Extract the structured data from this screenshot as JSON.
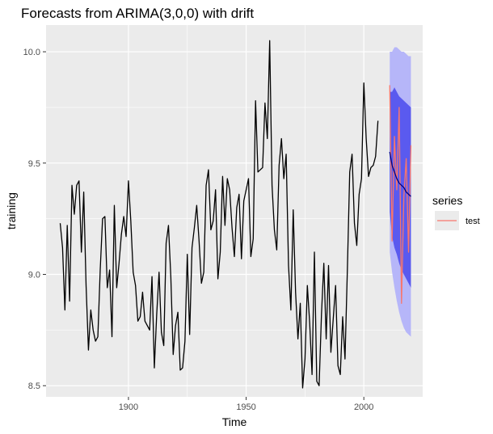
{
  "chart_data": {
    "type": "line",
    "title": "Forecasts from ARIMA(3,0,0) with drift",
    "xlabel": "Time",
    "ylabel": "training",
    "xlim": [
      1865,
      2025
    ],
    "ylim": [
      8.45,
      10.12
    ],
    "x_ticks": [
      1900,
      1950,
      2000
    ],
    "y_ticks": [
      8.5,
      9.0,
      9.5,
      10.0
    ],
    "y_tick_labels": [
      "8.5",
      "9.0",
      "9.5",
      "10.0"
    ],
    "grid": true,
    "legend": {
      "title": "series",
      "position": "right",
      "entries": [
        {
          "name": "test",
          "color": "#f8766d"
        }
      ]
    },
    "colors": {
      "training": "#000000",
      "forecast_mean": "#000080",
      "band_80": "#5a5aef",
      "band_95": "#b6b6f9",
      "test": "#f8766d",
      "panel": "#ebebeb",
      "grid": "#ffffff"
    },
    "series": [
      {
        "id": "training",
        "x_start": 1871,
        "x_step": 1,
        "values": [
          9.23,
          9.12,
          8.84,
          9.22,
          8.88,
          9.4,
          9.27,
          9.4,
          9.42,
          9.1,
          9.37,
          8.95,
          8.66,
          8.84,
          8.75,
          8.7,
          8.72,
          9.02,
          9.25,
          9.26,
          8.94,
          9.02,
          8.72,
          9.31,
          8.94,
          9.05,
          9.18,
          9.26,
          9.17,
          9.42,
          9.24,
          9.01,
          8.95,
          8.79,
          8.81,
          8.92,
          8.79,
          8.77,
          8.75,
          8.99,
          8.58,
          8.82,
          9.01,
          8.74,
          8.68,
          9.14,
          9.22,
          8.99,
          8.64,
          8.77,
          8.83,
          8.57,
          8.58,
          8.7,
          9.09,
          8.73,
          9.12,
          9.21,
          9.31,
          9.15,
          8.96,
          9.01,
          9.4,
          9.47,
          9.2,
          9.24,
          9.38,
          8.98,
          9.1,
          9.44,
          9.22,
          9.43,
          9.38,
          9.21,
          9.08,
          9.3,
          9.36,
          9.07,
          9.33,
          9.38,
          9.43,
          9.08,
          9.16,
          9.78,
          9.46,
          9.47,
          9.48,
          9.77,
          9.61,
          10.05,
          9.4,
          9.2,
          9.11,
          9.49,
          9.61,
          9.43,
          9.54,
          9.04,
          8.84,
          9.29,
          8.92,
          8.71,
          8.87,
          8.49,
          8.62,
          8.95,
          8.78,
          8.55,
          9.1,
          8.52,
          8.5,
          8.82,
          9.05,
          8.71,
          9.04,
          8.65,
          8.8,
          8.95,
          8.59,
          8.55,
          8.81,
          8.62,
          9.02,
          9.46,
          9.54,
          9.23,
          9.13,
          9.36,
          9.43,
          9.86,
          9.61,
          9.44,
          9.48,
          9.49,
          9.53,
          9.69
        ]
      },
      {
        "id": "test",
        "name": "test",
        "x": [
          2011,
          2012,
          2013,
          2014,
          2015,
          2016,
          2017,
          2018,
          2019,
          2020
        ],
        "values": [
          9.85,
          9.15,
          9.62,
          9.38,
          9.75,
          8.87,
          9.35,
          9.52,
          9.1,
          9.58
        ]
      },
      {
        "id": "forecast",
        "x": [
          2011,
          2012,
          2013,
          2014,
          2015,
          2016,
          2017,
          2018,
          2019,
          2020
        ],
        "mean": [
          9.55,
          9.49,
          9.46,
          9.43,
          9.41,
          9.4,
          9.39,
          9.37,
          9.36,
          9.35
        ],
        "lo80": [
          9.28,
          9.17,
          9.12,
          9.09,
          9.05,
          9.02,
          9.0,
          8.98,
          8.96,
          8.94
        ],
        "hi80": [
          9.82,
          9.82,
          9.84,
          9.82,
          9.8,
          9.79,
          9.78,
          9.77,
          9.76,
          9.75
        ],
        "lo95": [
          9.1,
          9.01,
          8.94,
          8.88,
          8.83,
          8.79,
          8.76,
          8.74,
          8.73,
          8.72
        ],
        "hi95": [
          10.0,
          10.0,
          10.02,
          10.02,
          10.01,
          10.0,
          10.0,
          9.99,
          9.98,
          9.98
        ]
      }
    ]
  }
}
